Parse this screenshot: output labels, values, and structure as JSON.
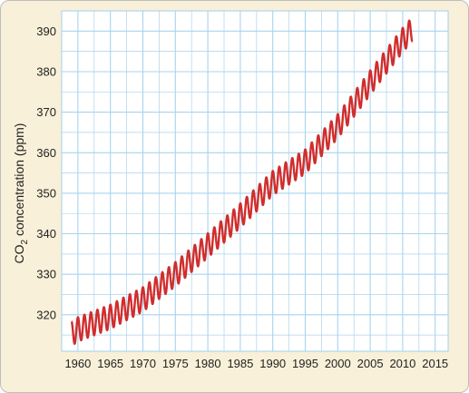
{
  "chart_data": {
    "type": "line",
    "title": "",
    "ylabel": {
      "prefix": "CO",
      "subscript": "2",
      "suffix": " concentration (ppm)"
    },
    "xlabel": "",
    "xlim": [
      1957.5,
      2017
    ],
    "ylim": [
      311,
      395
    ],
    "x_ticks": [
      1960,
      1965,
      1970,
      1975,
      1980,
      1985,
      1990,
      1995,
      2000,
      2005,
      2010,
      2015
    ],
    "y_ticks": [
      320,
      330,
      340,
      350,
      360,
      370,
      380,
      390
    ],
    "grid": true,
    "grid_minor": true,
    "colors": {
      "background": "#f8f0d8",
      "plot_area": "#ffffff",
      "grid": "#a8d4ee",
      "line": "#d12d2d"
    },
    "series": [
      {
        "seasonal_amplitude_ppm": 3,
        "trend": [
          {
            "x": 1959.0,
            "y": 315.3
          },
          {
            "x": 1960.0,
            "y": 316.4
          },
          {
            "x": 1965.0,
            "y": 319.5
          },
          {
            "x": 1970.0,
            "y": 323.8
          },
          {
            "x": 1975.0,
            "y": 330.0
          },
          {
            "x": 1980.0,
            "y": 337.1
          },
          {
            "x": 1985.0,
            "y": 344.5
          },
          {
            "x": 1990.0,
            "y": 352.5
          },
          {
            "x": 1995.0,
            "y": 357.8
          },
          {
            "x": 2000.0,
            "y": 366.5
          },
          {
            "x": 2005.0,
            "y": 377.3
          },
          {
            "x": 2010.0,
            "y": 387.8
          },
          {
            "x": 2011.5,
            "y": 390.5
          }
        ]
      }
    ]
  }
}
